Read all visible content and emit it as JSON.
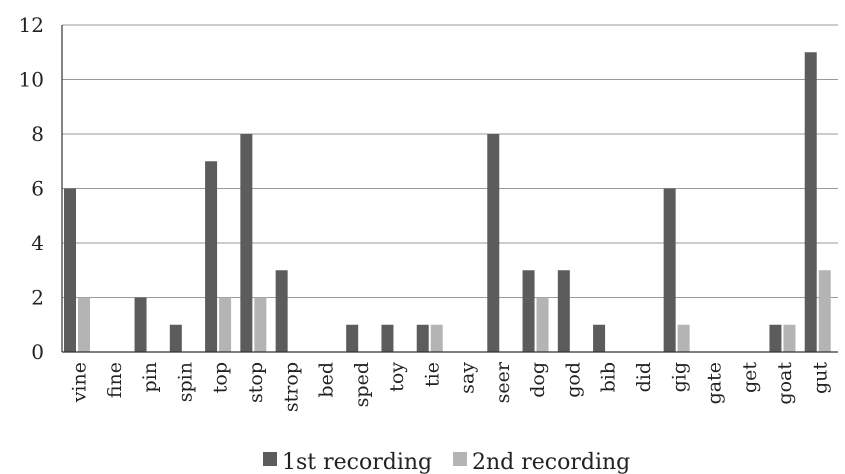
{
  "chart_data": {
    "type": "bar",
    "categories": [
      "vine",
      "fine",
      "pin",
      "spin",
      "top",
      "stop",
      "strop",
      "bed",
      "sped",
      "toy",
      "tie",
      "say",
      "seer",
      "dog",
      "god",
      "bib",
      "did",
      "gig",
      "gate",
      "get",
      "goat",
      "gut"
    ],
    "series": [
      {
        "name": "1st recording",
        "color": "#5c5c5c",
        "values": [
          6,
          0,
          2,
          1,
          7,
          8,
          3,
          0,
          1,
          1,
          1,
          0,
          8,
          3,
          3,
          1,
          0,
          6,
          0,
          0,
          1,
          11
        ]
      },
      {
        "name": "2nd recording",
        "color": "#b4b4b4",
        "values": [
          2,
          0,
          0,
          0,
          2,
          2,
          0,
          0,
          0,
          0,
          1,
          0,
          0,
          2,
          0,
          0,
          0,
          1,
          0,
          0,
          1,
          3
        ]
      }
    ],
    "yticks": [
      0,
      2,
      4,
      6,
      8,
      10,
      12
    ],
    "ylim": [
      0,
      12
    ],
    "grid": true,
    "legend_position": "bottom-center",
    "title": "",
    "xlabel": "",
    "ylabel": ""
  }
}
